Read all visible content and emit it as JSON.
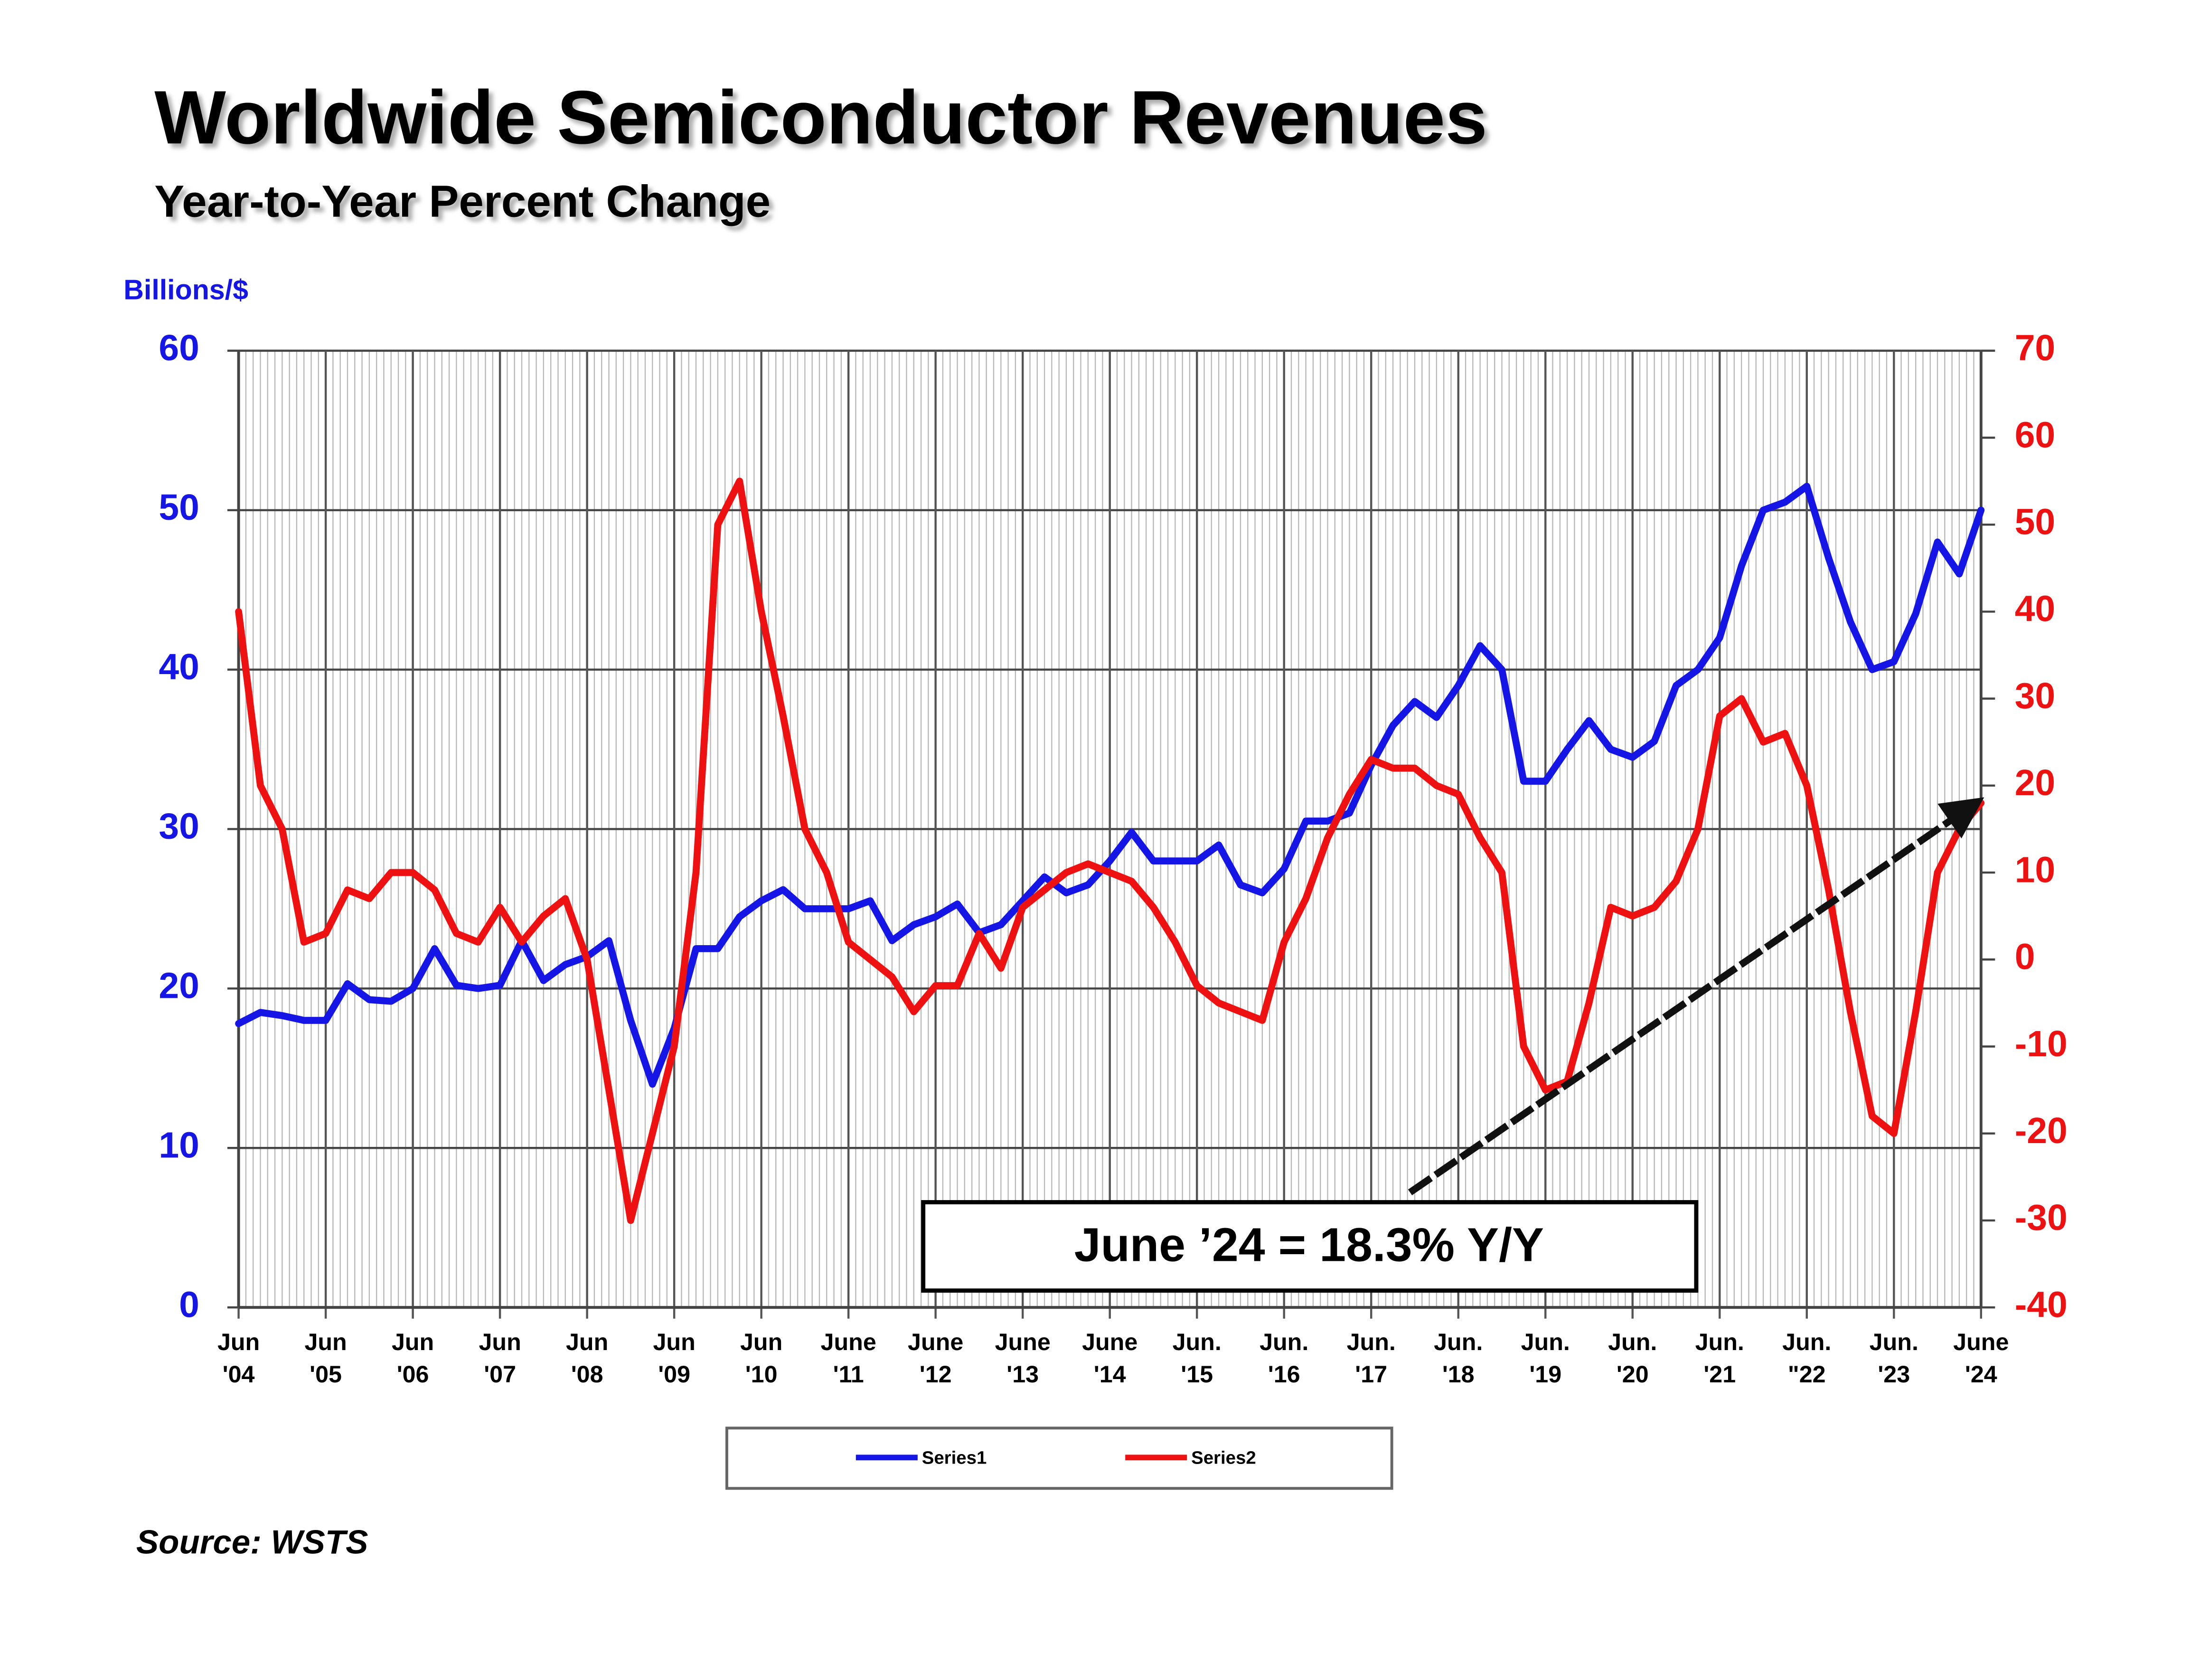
{
  "chart_data": {
    "type": "line",
    "title": "Worldwide Semiconductor Revenues",
    "subtitle": "Year-to-Year Percent Change",
    "y_axis_label": "Billions/$",
    "annotation": "June ’24 = 18.3% Y/Y",
    "source": "Source: WSTS",
    "grid": true,
    "legend": "bottom",
    "x": [
      "2004-06",
      "2004-09",
      "2004-12",
      "2005-03",
      "2005-06",
      "2005-09",
      "2005-12",
      "2006-03",
      "2006-06",
      "2006-09",
      "2006-12",
      "2007-03",
      "2007-06",
      "2007-09",
      "2007-12",
      "2008-03",
      "2008-06",
      "2008-09",
      "2008-12",
      "2009-03",
      "2009-06",
      "2009-09",
      "2009-12",
      "2010-03",
      "2010-06",
      "2010-09",
      "2010-12",
      "2011-03",
      "2011-06",
      "2011-09",
      "2011-12",
      "2012-03",
      "2012-06",
      "2012-09",
      "2012-12",
      "2013-03",
      "2013-06",
      "2013-09",
      "2013-12",
      "2014-03",
      "2014-06",
      "2014-09",
      "2014-12",
      "2015-03",
      "2015-06",
      "2015-09",
      "2015-12",
      "2016-03",
      "2016-06",
      "2016-09",
      "2016-12",
      "2017-03",
      "2017-06",
      "2017-09",
      "2017-12",
      "2018-03",
      "2018-06",
      "2018-09",
      "2018-12",
      "2019-03",
      "2019-06",
      "2019-09",
      "2019-12",
      "2020-03",
      "2020-06",
      "2020-09",
      "2020-12",
      "2021-03",
      "2021-06",
      "2021-09",
      "2021-12",
      "2022-03",
      "2022-06",
      "2022-09",
      "2022-12",
      "2023-03",
      "2023-06",
      "2023-09",
      "2023-12",
      "2024-03",
      "2024-06"
    ],
    "series": [
      {
        "name": "Series1",
        "color": "#1515e6",
        "axis": "y",
        "values": [
          17.8,
          18.5,
          18.3,
          18.0,
          18.0,
          20.3,
          19.3,
          19.2,
          20.0,
          22.5,
          20.2,
          20.0,
          20.2,
          23.0,
          20.5,
          21.5,
          22.0,
          23.0,
          18.0,
          14.0,
          17.5,
          22.5,
          22.5,
          24.5,
          25.5,
          26.2,
          25.0,
          25.0,
          25.0,
          25.5,
          23.0,
          24.0,
          24.5,
          25.3,
          23.5,
          24.0,
          25.5,
          27.0,
          26.0,
          26.5,
          28.0,
          29.8,
          28.0,
          28.0,
          28.0,
          29.0,
          26.5,
          26.0,
          27.5,
          30.5,
          30.5,
          31.0,
          34.0,
          36.5,
          38.0,
          37.0,
          39.0,
          41.5,
          40.0,
          33.0,
          33.0,
          35.0,
          36.8,
          35.0,
          34.5,
          35.5,
          39.0,
          40.0,
          42.0,
          46.5,
          50.0,
          50.5,
          51.5,
          47.0,
          43.0,
          40.0,
          40.5,
          43.5,
          48.0,
          46.0,
          50.0
        ]
      },
      {
        "name": "Series2",
        "color": "#ee1111",
        "axis": "y2",
        "values": [
          40,
          20,
          15,
          2,
          3,
          8,
          7,
          10,
          10,
          8,
          3,
          2,
          6,
          2,
          5,
          7,
          0,
          -15,
          -30,
          -20,
          -10,
          10,
          50,
          55,
          40,
          28,
          15,
          10,
          2,
          0,
          -2,
          -6,
          -3,
          -3,
          3,
          -1,
          6,
          8,
          10,
          11,
          10,
          9,
          6,
          2,
          -3,
          -5,
          -6,
          -7,
          2,
          7,
          14,
          19,
          23,
          22,
          22,
          20,
          19,
          14,
          10,
          -10,
          -15,
          -14,
          -5,
          6,
          5,
          6,
          9,
          15,
          28,
          30,
          25,
          26,
          20,
          8,
          -6,
          -18,
          -20,
          -6,
          10,
          15,
          18
        ]
      }
    ],
    "xlim": [
      "2004-06",
      "2024-06"
    ],
    "xticks": [
      {
        "value": "2004-06",
        "label": [
          "Jun",
          "'04"
        ]
      },
      {
        "value": "2005-06",
        "label": [
          "Jun",
          "'05"
        ]
      },
      {
        "value": "2006-06",
        "label": [
          "Jun",
          "'06"
        ]
      },
      {
        "value": "2007-06",
        "label": [
          "Jun",
          "'07"
        ]
      },
      {
        "value": "2008-06",
        "label": [
          "Jun",
          "'08"
        ]
      },
      {
        "value": "2009-06",
        "label": [
          "Jun",
          "'09"
        ]
      },
      {
        "value": "2010-06",
        "label": [
          "Jun",
          "'10"
        ]
      },
      {
        "value": "2011-06",
        "label": [
          "June",
          "'11"
        ]
      },
      {
        "value": "2012-06",
        "label": [
          "June",
          "'12"
        ]
      },
      {
        "value": "2013-06",
        "label": [
          "June",
          "'13"
        ]
      },
      {
        "value": "2014-06",
        "label": [
          "June",
          "'14"
        ]
      },
      {
        "value": "2015-06",
        "label": [
          "Jun.",
          "'15"
        ]
      },
      {
        "value": "2016-06",
        "label": [
          "Jun.",
          "'16"
        ]
      },
      {
        "value": "2017-06",
        "label": [
          "Jun.",
          "'17"
        ]
      },
      {
        "value": "2018-06",
        "label": [
          "Jun.",
          "'18"
        ]
      },
      {
        "value": "2019-06",
        "label": [
          "Jun.",
          "'19"
        ]
      },
      {
        "value": "2020-06",
        "label": [
          "Jun.",
          "'20"
        ]
      },
      {
        "value": "2021-06",
        "label": [
          "Jun.",
          "'21"
        ]
      },
      {
        "value": "2022-06",
        "label": [
          "Jun.",
          "\"22"
        ]
      },
      {
        "value": "2023-06",
        "label": [
          "Jun.",
          "'23"
        ]
      },
      {
        "value": "2024-06",
        "label": [
          "June",
          "'24"
        ]
      }
    ],
    "ylim": [
      0,
      60
    ],
    "yticks": [
      0,
      10,
      20,
      30,
      40,
      50,
      60
    ],
    "y2lim": [
      -40,
      70
    ],
    "y2ticks": [
      -40,
      -30,
      -20,
      -10,
      0,
      10,
      20,
      30,
      40,
      50,
      60,
      70
    ]
  }
}
